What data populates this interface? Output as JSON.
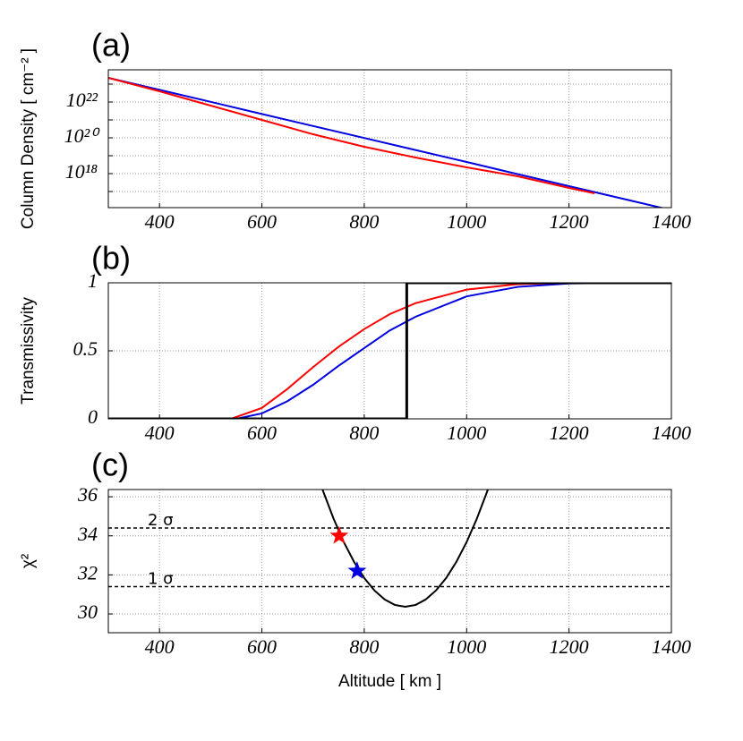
{
  "chart_data": [
    {
      "type": "line",
      "label": "(a)",
      "ylabel": "Column Density [ cm⁻² ]",
      "xlim": [
        300,
        1400
      ],
      "xticks": [
        400,
        600,
        800,
        1000,
        1200,
        1400
      ],
      "ylim": [
        1.26e+16,
        6.31e+23
      ],
      "log_y": true,
      "grid": true,
      "yticks": [
        {
          "value": 1e+22,
          "label": "10²²"
        },
        {
          "value": 1e+20,
          "label": "10²⁰"
        },
        {
          "value": 1e+18,
          "label": "10¹⁸"
        }
      ],
      "yminor_grid": [
        1e+23,
        1e+21,
        1e+19,
        1e+17
      ],
      "series": [
        {
          "color": "#0000e0",
          "x": [
            300,
            400,
            500,
            600,
            700,
            800,
            900,
            1000,
            1100,
            1200,
            1300,
            1400
          ],
          "values": [
            2.24e+23,
            4.79e+22,
            1.02e+22,
            2.14e+21,
            4.57e+20,
            9.77e+19,
            2.09e+19,
            4.47e+18,
            9.33e+17,
            2e+17,
            4.27e+16,
            9120000000000000.0
          ]
        },
        {
          "color": "#ff0000",
          "x": [
            300,
            400,
            500,
            600,
            700,
            800,
            900,
            1000,
            1100,
            1200,
            1250
          ],
          "values": [
            2.24e+23,
            3.98e+22,
            6.31e+21,
            1e+21,
            1.58e+20,
            3.16e+19,
            7.94e+18,
            2.24e+18,
            7.08e+17,
            1.58e+17,
            7.94e+16
          ]
        }
      ]
    },
    {
      "type": "line",
      "label": "(b)",
      "ylabel": "Transmissivity",
      "xlim": [
        300,
        1400
      ],
      "xticks": [
        400,
        600,
        800,
        1000,
        1200,
        1400
      ],
      "ylim": [
        0,
        1
      ],
      "yticks": [
        0,
        0.5,
        1
      ],
      "grid": true,
      "series": [
        {
          "color": "#0000e0",
          "x": [
            300,
            550,
            600,
            650,
            700,
            750,
            800,
            850,
            900,
            1000,
            1100,
            1200,
            1300,
            1400
          ],
          "values": [
            0,
            0,
            0.04,
            0.13,
            0.25,
            0.39,
            0.52,
            0.65,
            0.75,
            0.9,
            0.97,
            0.995,
            1,
            1
          ]
        },
        {
          "color": "#ff0000",
          "x": [
            300,
            540,
            600,
            650,
            700,
            750,
            800,
            850,
            900,
            1000,
            1100,
            1200,
            1300
          ],
          "values": [
            0,
            0,
            0.08,
            0.22,
            0.38,
            0.53,
            0.66,
            0.77,
            0.85,
            0.95,
            0.99,
            1,
            1
          ]
        },
        {
          "color": "#000000",
          "width": 3,
          "x": [
            300,
            883,
            883,
            1400
          ],
          "values": [
            0,
            0,
            1,
            1
          ]
        }
      ]
    },
    {
      "type": "line",
      "label": "(c)",
      "ylabel": "χ²",
      "xlabel": "Altitude [ km ]",
      "xlim": [
        300,
        1400
      ],
      "xticks": [
        400,
        600,
        800,
        1000,
        1200,
        1400
      ],
      "ylim": [
        29.04,
        36.37
      ],
      "yticks": [
        30,
        32,
        34,
        36
      ],
      "grid": true,
      "hlines": [
        {
          "value": 34.4,
          "label": "2 σ"
        },
        {
          "value": 31.4,
          "label": "1 σ"
        }
      ],
      "series": [
        {
          "color": "#000000",
          "x": [
            700,
            720,
            740,
            760,
            780,
            800,
            820,
            840,
            860,
            880,
            900,
            920,
            940,
            960,
            980,
            1000,
            1020,
            1040,
            1060
          ],
          "values": [
            37.82,
            36.26,
            34.88,
            33.68,
            32.67,
            31.84,
            31.2,
            30.74,
            30.46,
            30.37,
            30.46,
            30.74,
            31.2,
            31.84,
            32.67,
            33.68,
            34.88,
            36.26,
            37.82
          ]
        }
      ],
      "markers": [
        {
          "color": "#ff0000",
          "x": 751,
          "value": 34.0
        },
        {
          "color": "#0000e0",
          "x": 786,
          "value": 32.2
        }
      ]
    }
  ]
}
